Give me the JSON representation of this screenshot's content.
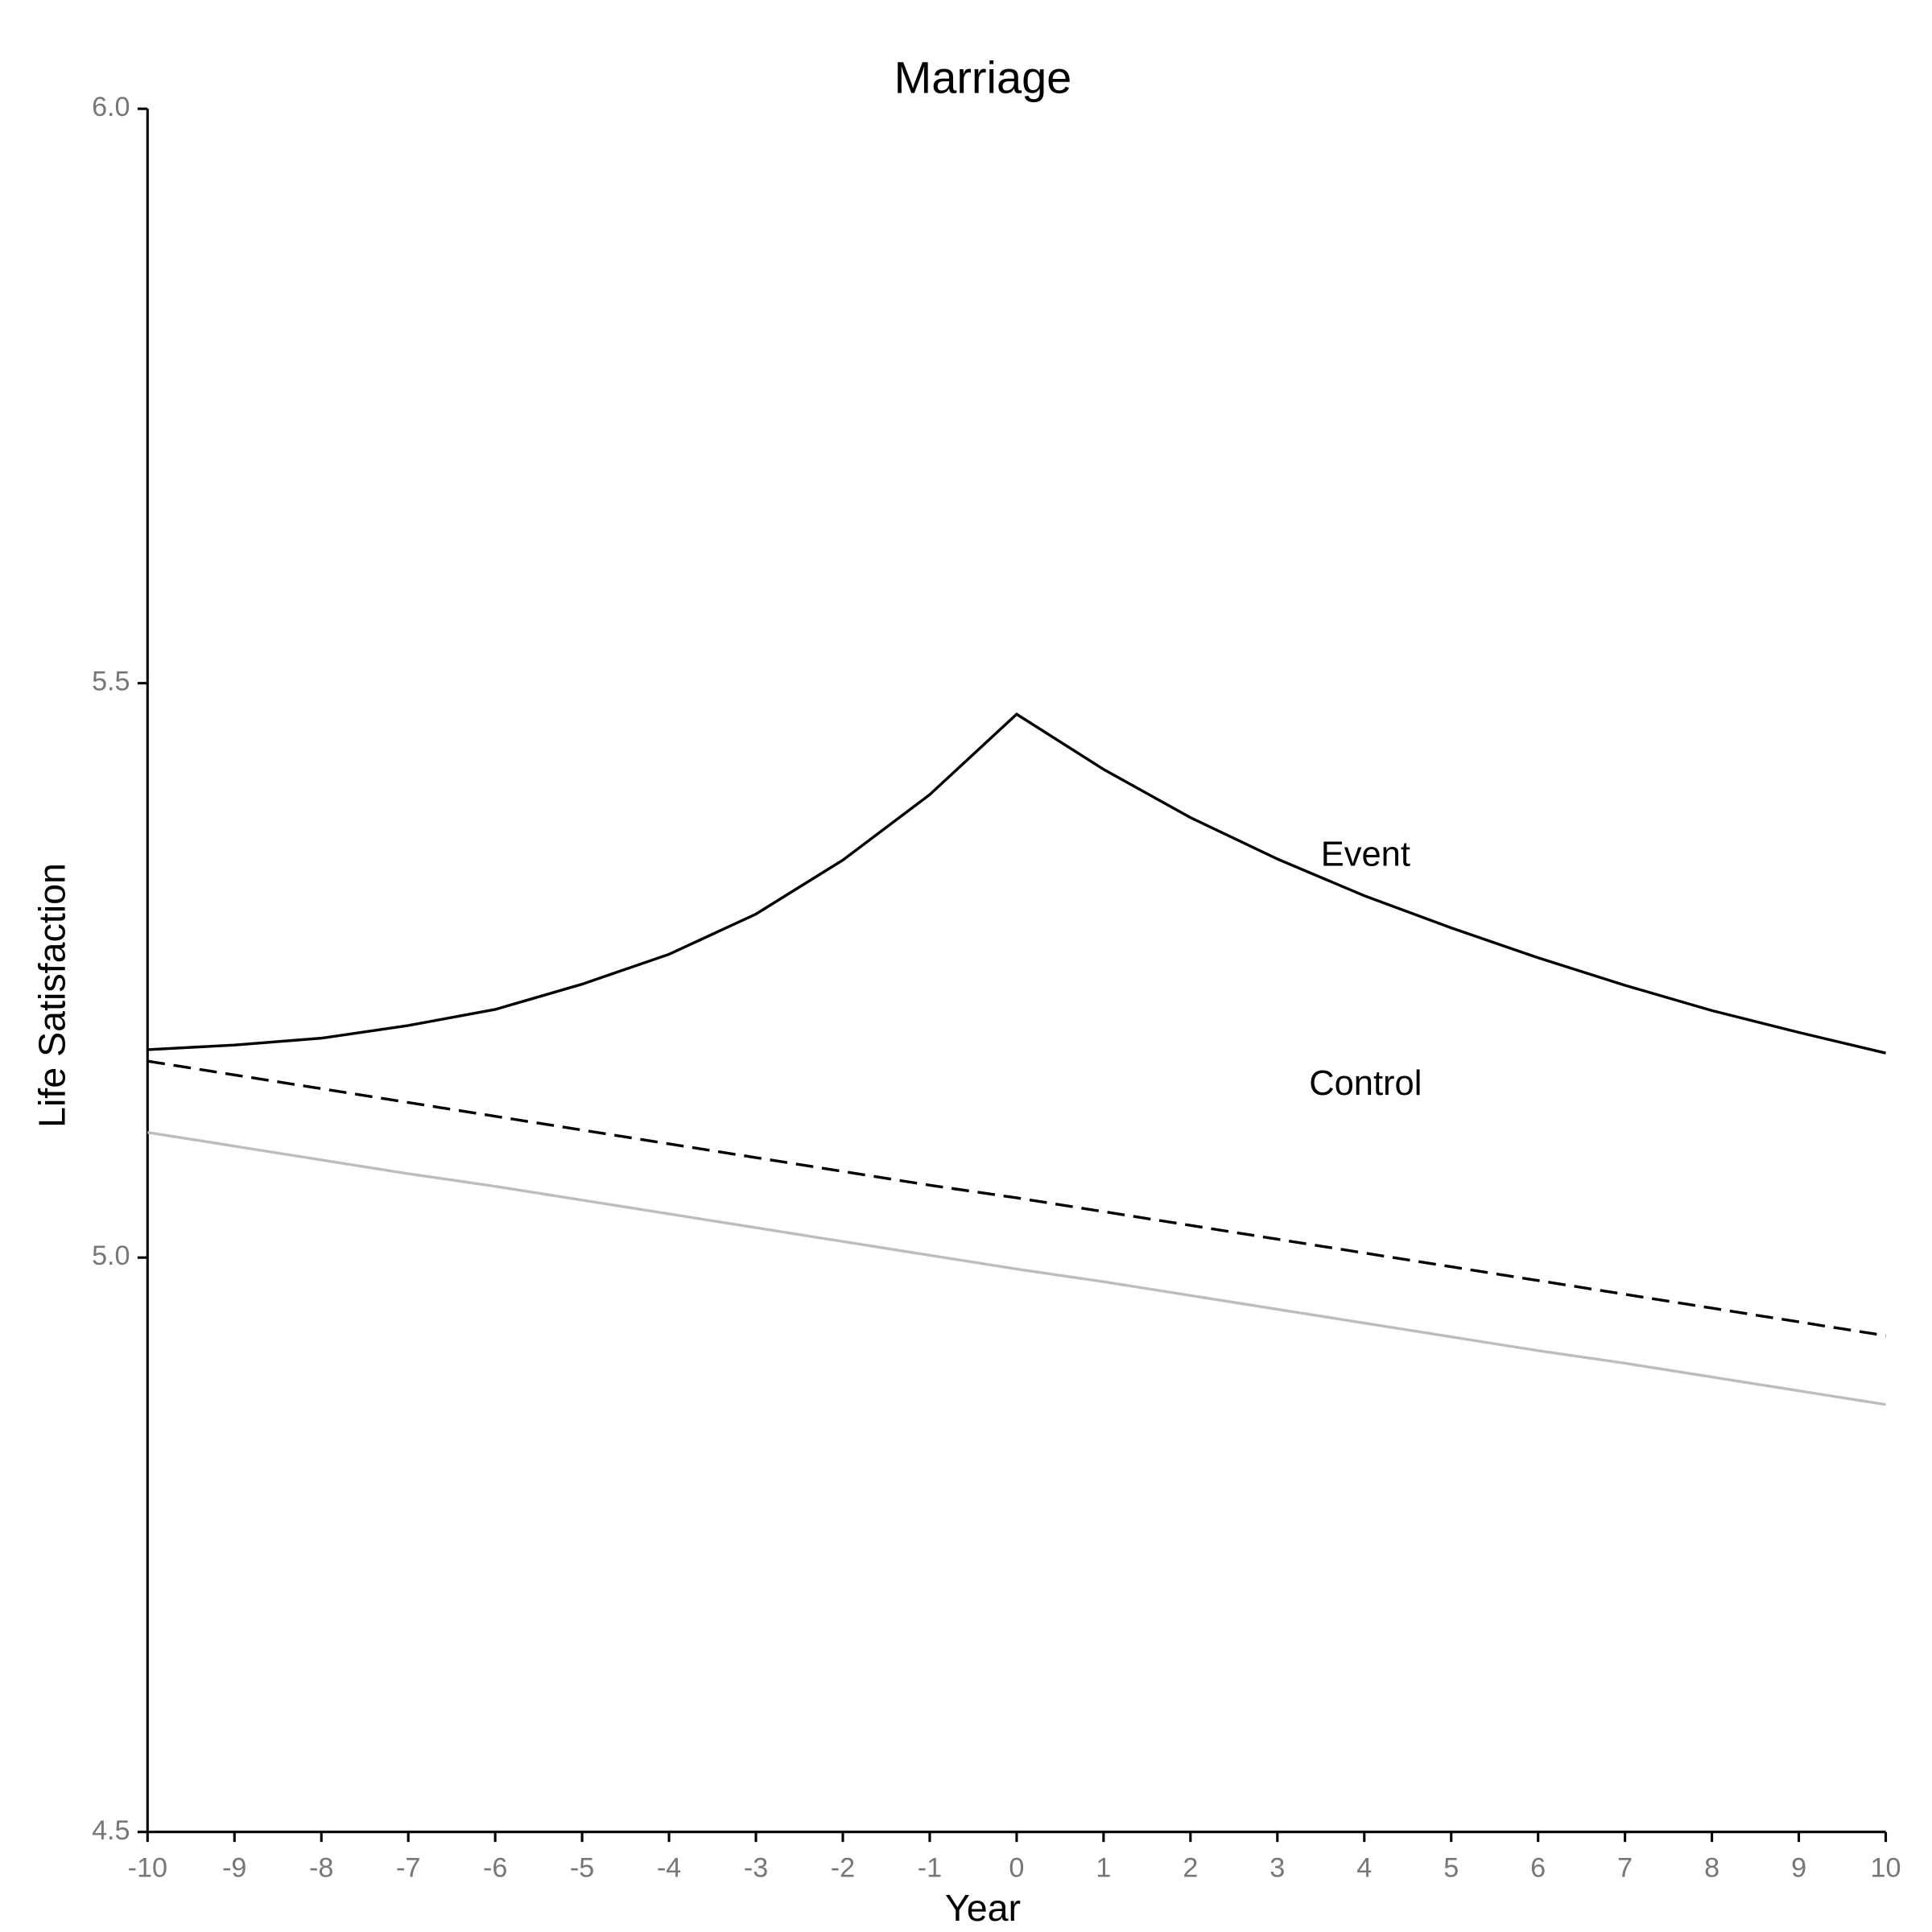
{
  "chart_data": {
    "type": "line",
    "title": "Marriage",
    "x_label": "Year",
    "y_label": "Life Satisfaction",
    "x": [
      -10,
      -9,
      -8,
      -7,
      -6,
      -5,
      -4,
      -3,
      -2,
      -1,
      0,
      1,
      2,
      3,
      4,
      5,
      6,
      7,
      8,
      9,
      10
    ],
    "series": [
      {
        "color": "#000000",
        "dash": false,
        "values": [
          5.181,
          5.185,
          5.191,
          5.202,
          5.216,
          5.238,
          5.264,
          5.299,
          5.346,
          5.403,
          5.473,
          5.425,
          5.383,
          5.347,
          5.315,
          5.287,
          5.261,
          5.237,
          5.215,
          5.196,
          5.178
        ]
      },
      {
        "color": "#000000",
        "dash": true,
        "values": [
          5.171,
          5.159,
          5.147,
          5.135,
          5.123,
          5.111,
          5.099,
          5.087,
          5.075,
          5.063,
          5.052,
          5.04,
          5.028,
          5.016,
          5.004,
          4.992,
          4.98,
          4.968,
          4.956,
          4.944,
          4.932
        ]
      },
      {
        "color": "#bdbdbd",
        "dash": false,
        "values": [
          5.109,
          5.097,
          5.085,
          5.073,
          5.062,
          5.05,
          5.038,
          5.026,
          5.014,
          5.002,
          4.99,
          4.979,
          4.967,
          4.955,
          4.943,
          4.931,
          4.919,
          4.908,
          4.896,
          4.884,
          4.872
        ]
      }
    ],
    "annotations": [
      "Event",
      "Control"
    ],
    "xlim": [
      -10,
      10
    ],
    "ylim": [
      4.5,
      6
    ],
    "xticks": [
      -10,
      -9,
      -8,
      -7,
      -6,
      -5,
      -4,
      -3,
      -2,
      -1,
      0,
      1,
      2,
      3,
      4,
      5,
      6,
      7,
      8,
      9,
      10
    ],
    "yticks": [
      {
        "value": 4.5,
        "label": "4.5"
      },
      {
        "value": 5,
        "label": "5.0"
      },
      5.5,
      {
        "value": 6,
        "label": "6.0"
      }
    ],
    "grid": false
  }
}
